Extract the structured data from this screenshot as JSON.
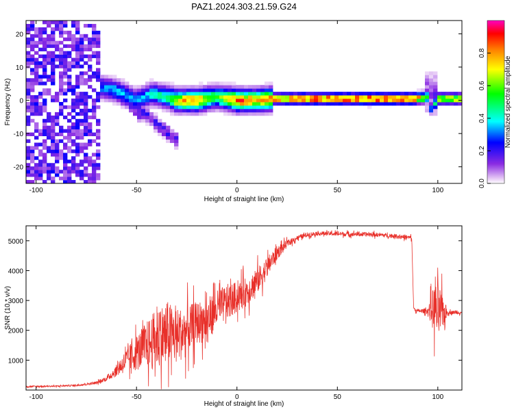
{
  "title": "PAZ1.2024.303.21.59.G24",
  "chart_data": [
    {
      "type": "heatmap",
      "xlabel": "Height of straight line (km)",
      "ylabel": "Frequency (Hz)",
      "xlim": [
        -105,
        112
      ],
      "ylim": [
        -25,
        24
      ],
      "xticks": [
        -100,
        -50,
        0,
        50,
        100
      ],
      "yticks": [
        -20,
        -10,
        0,
        10,
        20
      ],
      "colorbar": {
        "label": "Normalized spectral amplitude",
        "range": [
          0,
          1
        ],
        "ticks": [
          0.0,
          0.2,
          0.4,
          0.6,
          0.8
        ],
        "tick_labels": [
          "0.0",
          "0.2",
          "0.4",
          "0.6",
          "0.8"
        ]
      },
      "ridge": {
        "x": [
          -68,
          -60,
          -50,
          -42,
          -35,
          -30,
          -20,
          -10,
          0,
          10,
          18,
          30,
          50,
          70,
          88,
          95,
          97,
          100,
          112
        ],
        "frequency": [
          4,
          3,
          0,
          2,
          1,
          0,
          0,
          1,
          0,
          0,
          0.5,
          0.5,
          0.5,
          0.5,
          0.5,
          1,
          -3,
          0.5,
          0.5
        ],
        "amplitude": [
          0.3,
          0.35,
          0.3,
          0.4,
          0.45,
          0.7,
          0.8,
          0.5,
          0.85,
          0.75,
          0.85,
          0.9,
          0.95,
          0.95,
          0.9,
          0.6,
          0.3,
          0.7,
          0.7
        ]
      },
      "branches": [
        {
          "x": [
            -50,
            -40,
            -30
          ],
          "frequency": [
            -2,
            -7,
            -12
          ]
        },
        {
          "x": [
            -65,
            -55,
            -47
          ],
          "frequency": [
            3,
            0,
            -5
          ]
        }
      ],
      "noise_region": {
        "x": [
          -105,
          -68
        ],
        "amplitude": [
          0.05,
          0.25
        ]
      }
    },
    {
      "type": "line",
      "xlabel": "Height of straight line (km)",
      "ylabel": "SNR (10 * v/v)",
      "xlim": [
        -105,
        112
      ],
      "ylim": [
        0,
        5500
      ],
      "xticks": [
        -100,
        -50,
        0,
        50,
        100
      ],
      "yticks": [
        1000,
        2000,
        3000,
        4000,
        5000
      ],
      "color": "#e8302a",
      "series": [
        {
          "x": [
            -105,
            -90,
            -80,
            -70,
            -65,
            -60,
            -55,
            -50,
            -45,
            -40,
            -35,
            -30,
            -25,
            -20,
            -15,
            -10,
            -5,
            0,
            5,
            10,
            15,
            20,
            25,
            30,
            35,
            40,
            50,
            60,
            70,
            80,
            87,
            88,
            90,
            95,
            98,
            100,
            105,
            112
          ],
          "y": [
            120,
            130,
            160,
            240,
            380,
            650,
            1000,
            1250,
            1500,
            1700,
            1900,
            1800,
            2000,
            2250,
            2350,
            2700,
            2950,
            3100,
            3300,
            3650,
            4100,
            4600,
            4900,
            5100,
            5200,
            5250,
            5230,
            5220,
            5200,
            5150,
            5100,
            2700,
            2650,
            2650,
            2700,
            2600,
            2600,
            2600
          ],
          "noise": [
            30,
            30,
            40,
            60,
            100,
            250,
            500,
            750,
            1000,
            1300,
            1400,
            1200,
            1000,
            900,
            900,
            800,
            750,
            650,
            600,
            550,
            450,
            300,
            150,
            100,
            100,
            90,
            90,
            90,
            90,
            90,
            90,
            80,
            70,
            120,
            1000,
            1300,
            80,
            80
          ]
        }
      ]
    }
  ]
}
